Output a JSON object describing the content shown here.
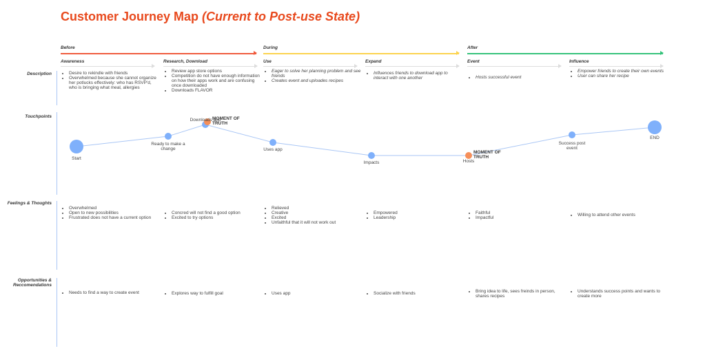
{
  "title": {
    "main": "Customer Journey Map ",
    "sub": "(Current to Post-use State)"
  },
  "phases": [
    {
      "label": "Before",
      "color": "#f05a3c"
    },
    {
      "label": "During",
      "color": "#fcd34d"
    },
    {
      "label": "After",
      "color": "#34c27a"
    }
  ],
  "stages": [
    "Awareness",
    "Research,  Download",
    "Use",
    "Expand",
    "Event",
    "Influence"
  ],
  "rows": {
    "description": "Description",
    "touchpoints": "Touchpoints",
    "feelings": "Feelings & Thoughts",
    "opportunities": "Opportunities & Reccomendations"
  },
  "description": [
    [
      "Desire to rekindle with friends",
      "Overwhelmed because she cannot organize her potlucks effectively: who has RSVP'd, who is bringing what meal, allergies"
    ],
    [
      "Review app store options",
      "Competition do not have enough information on how their apps work and are confusing once downloaded",
      "Downloads FLAVOR"
    ],
    [
      "Eager to solve her planning problem and see friends",
      "Creates event and uploades recipes"
    ],
    [
      "Influences friends to download app to interact with one another"
    ],
    [
      "Hosts successful event"
    ],
    [
      "Empower friends to create their own events",
      "User can share her recipe"
    ]
  ],
  "touchpoints": [
    {
      "label": "Start",
      "big": true
    },
    {
      "label": "Ready to make a change"
    },
    {
      "label": "Downloads app",
      "moment": true
    },
    {
      "label": "Uses app"
    },
    {
      "label": "Impacts"
    },
    {
      "label": "Hosts",
      "moment": true,
      "orangeOnly": true
    },
    {
      "label": "Success post event"
    },
    {
      "label": "END",
      "big": true
    }
  ],
  "moment_label": "MOMENT OF TRUTH",
  "colors": {
    "node": "#7fb0fb",
    "moment": "#f58f5a",
    "line": "#a9c6f5"
  },
  "feelings": [
    [
      "Overwhelmed",
      "Open to new possibilities",
      "Frustrated does not have a current option"
    ],
    [
      "Concred will not find a good option",
      "Excited to try options"
    ],
    [
      "Relieved",
      "Creative",
      "Excited",
      "Unfaithful that it will not work out"
    ],
    [
      "Empowered",
      "Leadership"
    ],
    [
      "Faithful",
      "Impactful"
    ],
    [
      "Willing to attend other events"
    ]
  ],
  "opportunities": [
    [
      "Needs to find a way to create event"
    ],
    [
      "Explores way to fulfill goal"
    ],
    [
      "Uses app"
    ],
    [
      "Socialize with friends"
    ],
    [
      "Bring idea to life, sees freinds in person, shares recipes"
    ],
    [
      "Understands success points and wants to create more"
    ]
  ]
}
